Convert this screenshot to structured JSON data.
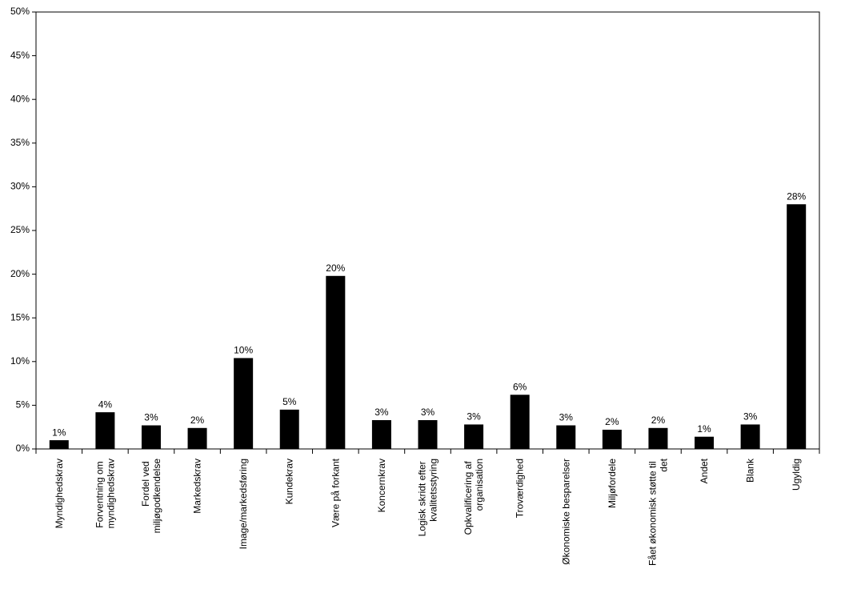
{
  "chart_data": {
    "type": "bar",
    "color": "#000000",
    "categories": [
      "Myndighedskrav",
      "Forventning om myndighedskrav",
      "Fordel ved miljøgodkendelse",
      "Markedskrav",
      "Image/markedsføring",
      "Kundekrav",
      "Være på forkant",
      "Koncernkrav",
      "Logisk skridt efter kvalitetsstyring",
      "Opkvalificering af organisation",
      "Troværdighed",
      "Økonomiske besparelser",
      "Miljøfordele",
      "Fået økonomisk støtte til det",
      "Andet",
      "Blank",
      "Ugyldig"
    ],
    "values": [
      1.0,
      4.2,
      2.7,
      2.4,
      10.4,
      4.5,
      19.8,
      3.3,
      3.3,
      2.8,
      6.2,
      2.7,
      2.2,
      2.4,
      1.4,
      2.8,
      28.0
    ],
    "value_labels": [
      "1%",
      "4%",
      "3%",
      "2%",
      "10%",
      "5%",
      "20%",
      "3%",
      "3%",
      "3%",
      "6%",
      "3%",
      "2%",
      "2%",
      "1%",
      "3%",
      "28%"
    ],
    "ylim": [
      0,
      50
    ],
    "yticks": [
      {
        "value": 0,
        "label": "0%"
      },
      {
        "value": 5,
        "label": "5%"
      },
      {
        "value": 10,
        "label": "10%"
      },
      {
        "value": 15,
        "label": "15%"
      },
      {
        "value": 20,
        "label": "20%"
      },
      {
        "value": 25,
        "label": "25%"
      },
      {
        "value": 30,
        "label": "30%"
      },
      {
        "value": 35,
        "label": "35%"
      },
      {
        "value": 40,
        "label": "40%"
      },
      {
        "value": 45,
        "label": "45%"
      },
      {
        "value": 50,
        "label": "50%"
      }
    ],
    "grid": false
  }
}
